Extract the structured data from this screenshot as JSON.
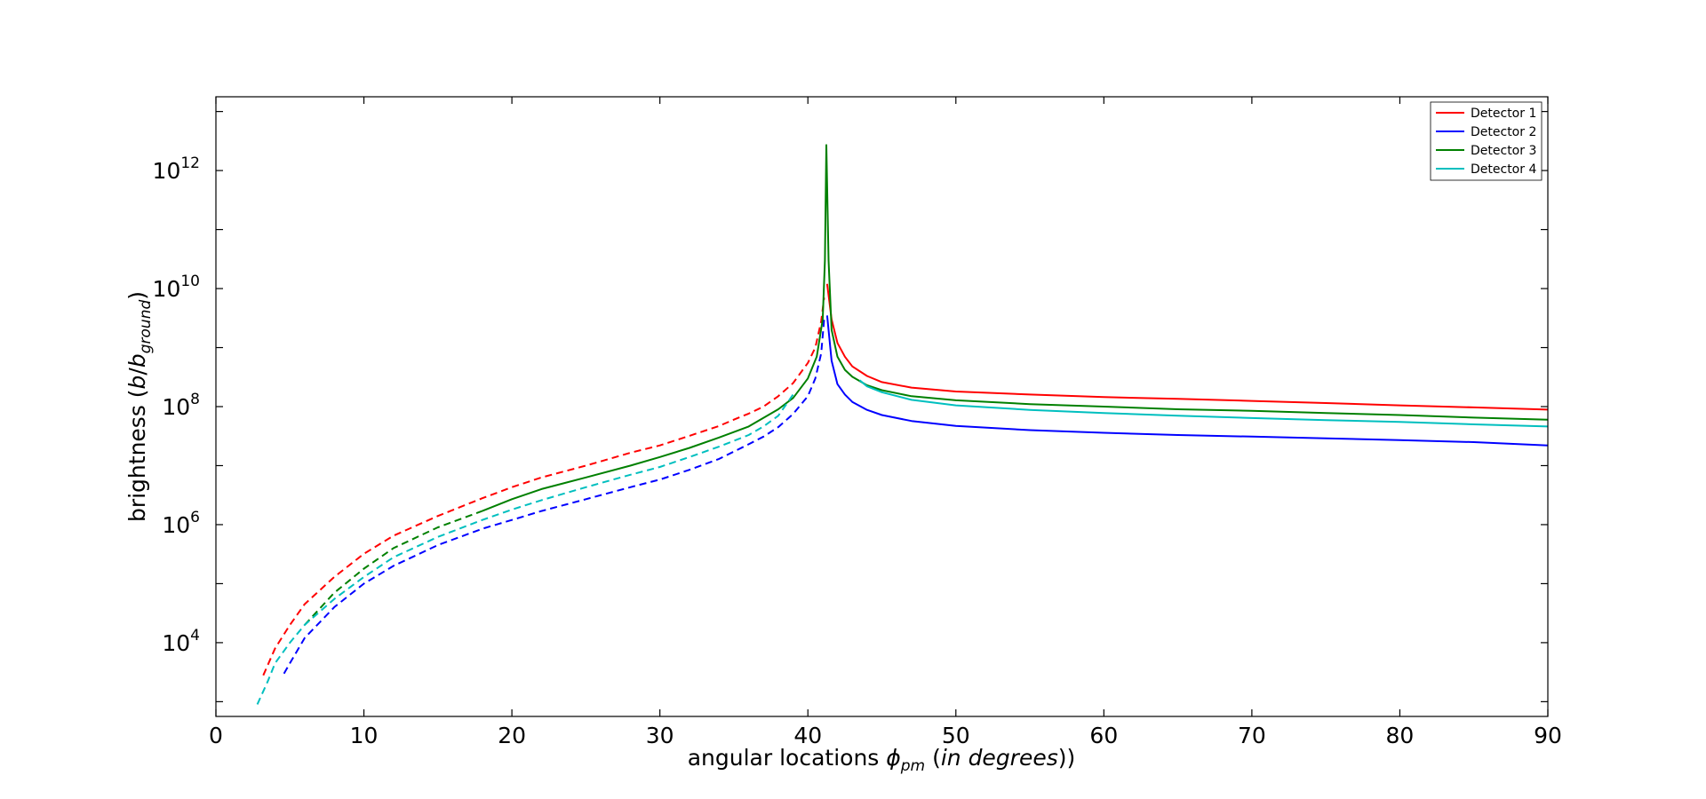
{
  "chart_data": {
    "type": "line",
    "xlabel": {
      "prefix": "angular locations ",
      "symbol": "ϕ",
      "subscript": "pm",
      "paren_open": " (",
      "units": "in degrees",
      "paren_close": "))"
    },
    "ylabel": {
      "prefix": "brightness (",
      "var": "b",
      "slash": "/",
      "var2": "b",
      "subscript": "ground",
      "suffix": ")"
    },
    "xlim": [
      0,
      90
    ],
    "ylim_log10": [
      2.75,
      13.25
    ],
    "yscale": "log",
    "grid": false,
    "legend_position": "top-right",
    "x_ticks": [
      {
        "value": 0,
        "label": "0"
      },
      {
        "value": 10,
        "label": "10"
      },
      {
        "value": 20,
        "label": "20"
      },
      {
        "value": 30,
        "label": "30"
      },
      {
        "value": 40,
        "label": "40"
      },
      {
        "value": 50,
        "label": "50"
      },
      {
        "value": 60,
        "label": "60"
      },
      {
        "value": 70,
        "label": "70"
      },
      {
        "value": 80,
        "label": "80"
      },
      {
        "value": 90,
        "label": "90"
      }
    ],
    "y_ticks": [
      {
        "exp": 4,
        "base": "10",
        "power": "4"
      },
      {
        "exp": 6,
        "base": "10",
        "power": "6"
      },
      {
        "exp": 8,
        "base": "10",
        "power": "8"
      },
      {
        "exp": 10,
        "base": "10",
        "power": "10"
      },
      {
        "exp": 12,
        "base": "10",
        "power": "12"
      }
    ],
    "peak_x": 41.2,
    "series": [
      {
        "name": "Detector 1",
        "color": "#ff0000",
        "dashed_segment": {
          "x": [
            3.2,
            4,
            5,
            6,
            8,
            10,
            12,
            15,
            18,
            20,
            22,
            25,
            28,
            30,
            32,
            34,
            35,
            36,
            37,
            38,
            39,
            40,
            40.5,
            40.9,
            41.1
          ],
          "y": [
            2800,
            8000,
            20000,
            45000,
            130000,
            320000,
            650000,
            1400000,
            2800000,
            4300000,
            6300000,
            10000000,
            16500000,
            22000000,
            32000000,
            47000000,
            60000000,
            76000000,
            100000000,
            150000000,
            250000000,
            550000000,
            1000000000,
            2800000000,
            7000000000
          ]
        },
        "solid_segment": {
          "x": [
            41.3,
            41.6,
            42,
            42.5,
            43,
            44,
            45,
            47,
            50,
            55,
            60,
            65,
            70,
            75,
            80,
            85,
            90
          ],
          "y": [
            12000000000,
            3000000000,
            1200000000,
            700000000,
            480000000,
            330000000,
            260000000,
            210000000,
            180000000,
            160000000,
            145000000,
            135000000,
            125000000,
            115000000,
            105000000,
            97000000,
            89000000
          ]
        }
      },
      {
        "name": "Detector 2",
        "color": "#0000ff",
        "dashed_segment": {
          "x": [
            4.6,
            5,
            6,
            8,
            10,
            12,
            15,
            18,
            20,
            22,
            25,
            28,
            30,
            32,
            34,
            36,
            37,
            38,
            39,
            40,
            40.5,
            40.9,
            41.1
          ],
          "y": [
            3000,
            4500,
            12000,
            40000,
            100000,
            200000,
            450000,
            850000,
            1200000,
            1700000,
            2700000,
            4300000,
            5800000,
            8500000,
            13000000,
            23000000,
            31000000,
            45000000,
            75000000,
            150000000,
            300000000,
            800000000,
            3000000000
          ]
        },
        "solid_segment": {
          "x": [
            41.3,
            41.6,
            42,
            42.5,
            43,
            44,
            45,
            47,
            50,
            55,
            60,
            65,
            70,
            75,
            80,
            85,
            90
          ],
          "y": [
            3500000000,
            600000000,
            240000000,
            160000000,
            120000000,
            88000000,
            72000000,
            57000000,
            47000000,
            40000000,
            36000000,
            33000000,
            31000000,
            29000000,
            27000000,
            25000000,
            22000000
          ]
        }
      },
      {
        "name": "Detector 3",
        "color": "#008000",
        "dashed_segment": {
          "x": [
            6,
            8,
            10,
            12,
            15,
            18
          ],
          "y": [
            20000,
            70000,
            180000,
            400000,
            900000,
            1700000
          ]
        },
        "solid_segment": {
          "x": [
            18,
            20,
            22,
            25,
            28,
            30,
            32,
            34,
            36,
            38,
            39,
            40,
            40.6,
            41,
            41.15,
            41.25,
            41.4,
            41.6,
            42,
            42.5,
            43,
            44,
            45,
            47,
            50,
            55,
            60,
            65,
            70,
            75,
            80,
            85,
            90
          ],
          "y": [
            1700000,
            2700000,
            4000000,
            6300000,
            10000000,
            14000000,
            20000000,
            30000000,
            46000000,
            90000000,
            140000000,
            300000000,
            700000000,
            3000000000,
            30000000000,
            2700000000000,
            30000000000,
            2000000000,
            700000000,
            420000000,
            320000000,
            230000000,
            190000000,
            150000000,
            128000000,
            110000000,
            100000000,
            90000000,
            85000000,
            78000000,
            72000000,
            65000000,
            60000000
          ]
        }
      },
      {
        "name": "Detector 4",
        "color": "#00bfbf",
        "dashed_segment": {
          "x": [
            2.8,
            3.5,
            4,
            5,
            6,
            8,
            10,
            12,
            15,
            18,
            20,
            22,
            25,
            28,
            30,
            32,
            34,
            36,
            37,
            38,
            39
          ],
          "y": [
            900,
            2200,
            4500,
            10000,
            20000,
            55000,
            130000,
            280000,
            620000,
            1200000,
            1800000,
            2600000,
            4300000,
            7000000,
            9500000,
            14000000,
            21000000,
            33000000,
            46000000,
            70000000,
            160000000
          ]
        },
        "solid_segment": {
          "x": [
            43.5,
            44,
            45,
            47,
            50,
            55,
            60,
            65,
            70,
            75,
            80,
            85,
            90
          ],
          "y": [
            280000000,
            220000000,
            175000000,
            130000000,
            105000000,
            88000000,
            78000000,
            70000000,
            64000000,
            59000000,
            55000000,
            50000000,
            46000000
          ]
        }
      }
    ]
  }
}
